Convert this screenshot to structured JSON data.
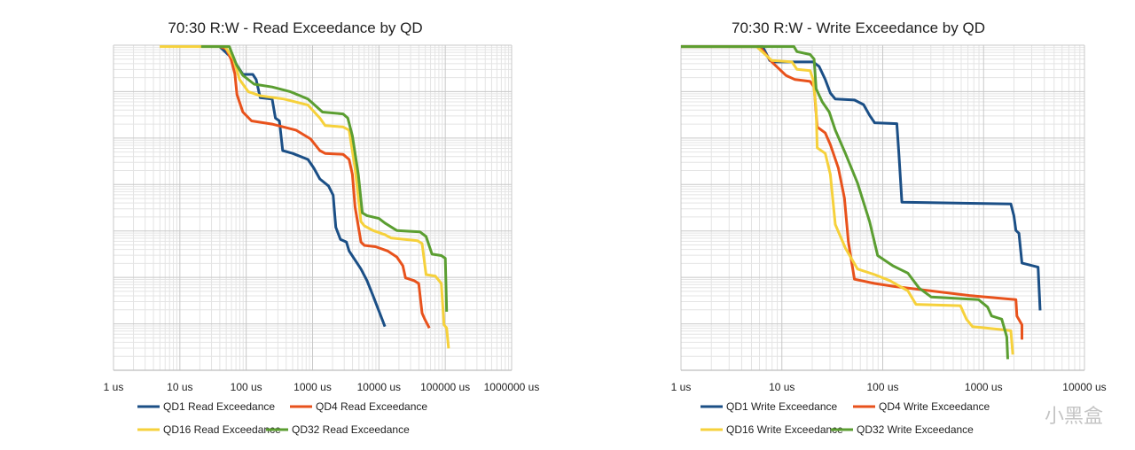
{
  "chart_data": [
    {
      "type": "line",
      "title": "70:30 R:W - Read Exceedance by QD",
      "xscale": "log",
      "yscale": "log",
      "point_format": "[log10(latency_us), log10(exceedance_probability)]",
      "xlim_us": [
        1,
        1000000
      ],
      "ylim_log10": [
        -7,
        0
      ],
      "x_tick_labels": [
        "1 us",
        "10 us",
        "100 us",
        "1000 us",
        "10000 us",
        "100000 us",
        "1000000 us"
      ],
      "y_tick_labels": [],
      "grid": true,
      "legend_placement": "bottom",
      "series": [
        {
          "name": "QD1 Read Exceedance",
          "color": "#1b4f86",
          "points": [
            [
              1.6,
              -0.03
            ],
            [
              1.8,
              -0.3
            ],
            [
              1.95,
              -0.63
            ],
            [
              2.1,
              -0.63
            ],
            [
              2.15,
              -0.74
            ],
            [
              2.21,
              -1.13
            ],
            [
              2.39,
              -1.16
            ],
            [
              2.44,
              -1.57
            ],
            [
              2.5,
              -1.63
            ],
            [
              2.55,
              -2.27
            ],
            [
              2.7,
              -2.33
            ],
            [
              2.93,
              -2.46
            ],
            [
              3.02,
              -2.65
            ],
            [
              3.11,
              -2.88
            ],
            [
              3.24,
              -3.03
            ],
            [
              3.31,
              -3.23
            ],
            [
              3.35,
              -3.92
            ],
            [
              3.42,
              -4.18
            ],
            [
              3.51,
              -4.24
            ],
            [
              3.55,
              -4.43
            ],
            [
              3.73,
              -4.82
            ],
            [
              3.82,
              -5.07
            ],
            [
              3.91,
              -5.39
            ],
            [
              4.09,
              -6.06
            ]
          ]
        },
        {
          "name": "QD4 Read Exceedance",
          "color": "#e8521c",
          "points": [
            [
              1.6,
              -0.03
            ],
            [
              1.7,
              -0.08
            ],
            [
              1.77,
              -0.3
            ],
            [
              1.83,
              -0.62
            ],
            [
              1.86,
              -1.06
            ],
            [
              1.95,
              -1.44
            ],
            [
              2.08,
              -1.63
            ],
            [
              2.39,
              -1.7
            ],
            [
              2.75,
              -1.83
            ],
            [
              2.97,
              -2.02
            ],
            [
              3.11,
              -2.27
            ],
            [
              3.19,
              -2.33
            ],
            [
              3.46,
              -2.35
            ],
            [
              3.55,
              -2.46
            ],
            [
              3.6,
              -2.78
            ],
            [
              3.64,
              -3.48
            ],
            [
              3.73,
              -4.24
            ],
            [
              3.78,
              -4.31
            ],
            [
              3.95,
              -4.34
            ],
            [
              4.13,
              -4.43
            ],
            [
              4.27,
              -4.56
            ],
            [
              4.36,
              -4.75
            ],
            [
              4.4,
              -5.01
            ],
            [
              4.53,
              -5.07
            ],
            [
              4.6,
              -5.13
            ],
            [
              4.65,
              -5.77
            ],
            [
              4.69,
              -5.9
            ],
            [
              4.76,
              -6.09
            ]
          ]
        },
        {
          "name": "QD16 Read Exceedance",
          "color": "#f6d13b",
          "points": [
            [
              0.696,
              -0.03
            ],
            [
              1.678,
              -0.03
            ],
            [
              1.81,
              -0.3
            ],
            [
              1.9,
              -0.74
            ],
            [
              2.03,
              -1.0
            ],
            [
              2.21,
              -1.09
            ],
            [
              2.57,
              -1.16
            ],
            [
              2.93,
              -1.29
            ],
            [
              3.11,
              -1.57
            ],
            [
              3.19,
              -1.73
            ],
            [
              3.46,
              -1.76
            ],
            [
              3.55,
              -1.83
            ],
            [
              3.64,
              -2.65
            ],
            [
              3.73,
              -3.8
            ],
            [
              3.78,
              -3.89
            ],
            [
              3.91,
              -3.99
            ],
            [
              4.09,
              -4.08
            ],
            [
              4.18,
              -4.15
            ],
            [
              4.58,
              -4.21
            ],
            [
              4.65,
              -4.27
            ],
            [
              4.71,
              -4.94
            ],
            [
              4.85,
              -4.97
            ],
            [
              4.94,
              -5.13
            ],
            [
              4.98,
              -6.02
            ],
            [
              5.02,
              -6.09
            ],
            [
              5.05,
              -6.53
            ]
          ]
        },
        {
          "name": "QD32 Read Exceedance",
          "color": "#5b9e31",
          "points": [
            [
              1.32,
              -0.03
            ],
            [
              1.745,
              -0.03
            ],
            [
              1.856,
              -0.43
            ],
            [
              1.95,
              -0.65
            ],
            [
              2.12,
              -0.84
            ],
            [
              2.39,
              -0.9
            ],
            [
              2.66,
              -1.0
            ],
            [
              2.93,
              -1.16
            ],
            [
              3.15,
              -1.44
            ],
            [
              3.46,
              -1.48
            ],
            [
              3.53,
              -1.57
            ],
            [
              3.6,
              -1.95
            ],
            [
              3.69,
              -2.78
            ],
            [
              3.75,
              -3.61
            ],
            [
              3.82,
              -3.67
            ],
            [
              4.0,
              -3.73
            ],
            [
              4.09,
              -3.83
            ],
            [
              4.27,
              -3.99
            ],
            [
              4.62,
              -4.02
            ],
            [
              4.71,
              -4.12
            ],
            [
              4.8,
              -4.5
            ],
            [
              4.94,
              -4.53
            ],
            [
              5.0,
              -4.59
            ],
            [
              5.02,
              -5.74
            ]
          ]
        }
      ]
    },
    {
      "type": "line",
      "title": "70:30 R:W - Write Exceedance by QD",
      "xscale": "log",
      "yscale": "log",
      "point_format": "[log10(latency_us), log10(exceedance_probability)]",
      "xlim_us": [
        1,
        10000
      ],
      "ylim_log10": [
        -7,
        0
      ],
      "x_tick_labels": [
        "1 us",
        "10 us",
        "100 us",
        "1000 us",
        "10000 us"
      ],
      "y_tick_labels": [],
      "grid": true,
      "legend_placement": "bottom",
      "series": [
        {
          "name": "QD1 Write Exceedance",
          "color": "#1b4f86",
          "points": [
            [
              0,
              -0.03
            ],
            [
              0.81,
              -0.03
            ],
            [
              0.88,
              -0.33
            ],
            [
              0.93,
              -0.36
            ],
            [
              1.31,
              -0.36
            ],
            [
              1.37,
              -0.46
            ],
            [
              1.43,
              -0.74
            ],
            [
              1.48,
              -1.03
            ],
            [
              1.53,
              -1.16
            ],
            [
              1.72,
              -1.18
            ],
            [
              1.81,
              -1.28
            ],
            [
              1.87,
              -1.51
            ],
            [
              1.92,
              -1.67
            ],
            [
              2.14,
              -1.69
            ],
            [
              2.16,
              -2.33
            ],
            [
              2.19,
              -3.38
            ],
            [
              3.27,
              -3.42
            ],
            [
              3.3,
              -3.67
            ],
            [
              3.32,
              -3.99
            ],
            [
              3.35,
              -4.05
            ],
            [
              3.38,
              -4.69
            ],
            [
              3.54,
              -4.78
            ],
            [
              3.56,
              -5.71
            ]
          ]
        },
        {
          "name": "QD4 Write Exceedance",
          "color": "#e8521c",
          "points": [
            [
              0,
              -0.03
            ],
            [
              0.78,
              -0.03
            ],
            [
              0.9,
              -0.36
            ],
            [
              1.04,
              -0.65
            ],
            [
              1.13,
              -0.74
            ],
            [
              1.28,
              -0.78
            ],
            [
              1.32,
              -0.9
            ],
            [
              1.35,
              -1.76
            ],
            [
              1.43,
              -1.89
            ],
            [
              1.48,
              -2.14
            ],
            [
              1.56,
              -2.65
            ],
            [
              1.62,
              -3.29
            ],
            [
              1.66,
              -4.24
            ],
            [
              1.72,
              -5.04
            ],
            [
              1.92,
              -5.13
            ],
            [
              2.13,
              -5.2
            ],
            [
              2.86,
              -5.39
            ],
            [
              3.32,
              -5.48
            ],
            [
              3.33,
              -5.83
            ],
            [
              3.38,
              -6.02
            ],
            [
              3.38,
              -6.34
            ]
          ]
        },
        {
          "name": "QD16 Write Exceedance",
          "color": "#f6d13b",
          "points": [
            [
              0,
              -0.03
            ],
            [
              0.75,
              -0.03
            ],
            [
              0.9,
              -0.33
            ],
            [
              1.1,
              -0.36
            ],
            [
              1.15,
              -0.52
            ],
            [
              1.28,
              -0.55
            ],
            [
              1.31,
              -0.74
            ],
            [
              1.34,
              -1.38
            ],
            [
              1.35,
              -2.21
            ],
            [
              1.43,
              -2.33
            ],
            [
              1.48,
              -2.78
            ],
            [
              1.53,
              -3.86
            ],
            [
              1.63,
              -4.37
            ],
            [
              1.75,
              -4.82
            ],
            [
              1.92,
              -4.94
            ],
            [
              2.07,
              -5.07
            ],
            [
              2.25,
              -5.29
            ],
            [
              2.33,
              -5.58
            ],
            [
              2.77,
              -5.61
            ],
            [
              2.83,
              -5.9
            ],
            [
              2.89,
              -6.06
            ],
            [
              3.16,
              -6.12
            ],
            [
              3.27,
              -6.15
            ],
            [
              3.29,
              -6.66
            ]
          ]
        },
        {
          "name": "QD32 Write Exceedance",
          "color": "#5b9e31",
          "points": [
            [
              0,
              -0.03
            ],
            [
              1.12,
              -0.03
            ],
            [
              1.15,
              -0.14
            ],
            [
              1.28,
              -0.2
            ],
            [
              1.32,
              -0.3
            ],
            [
              1.34,
              -0.94
            ],
            [
              1.4,
              -1.22
            ],
            [
              1.47,
              -1.44
            ],
            [
              1.53,
              -1.83
            ],
            [
              1.63,
              -2.33
            ],
            [
              1.75,
              -2.97
            ],
            [
              1.87,
              -3.8
            ],
            [
              1.95,
              -4.53
            ],
            [
              2.1,
              -4.75
            ],
            [
              2.25,
              -4.91
            ],
            [
              2.36,
              -5.23
            ],
            [
              2.48,
              -5.42
            ],
            [
              2.95,
              -5.48
            ],
            [
              3.04,
              -5.64
            ],
            [
              3.08,
              -5.83
            ],
            [
              3.18,
              -5.9
            ],
            [
              3.23,
              -6.28
            ],
            [
              3.24,
              -6.76
            ]
          ]
        }
      ]
    }
  ],
  "watermark": "小黑盒"
}
